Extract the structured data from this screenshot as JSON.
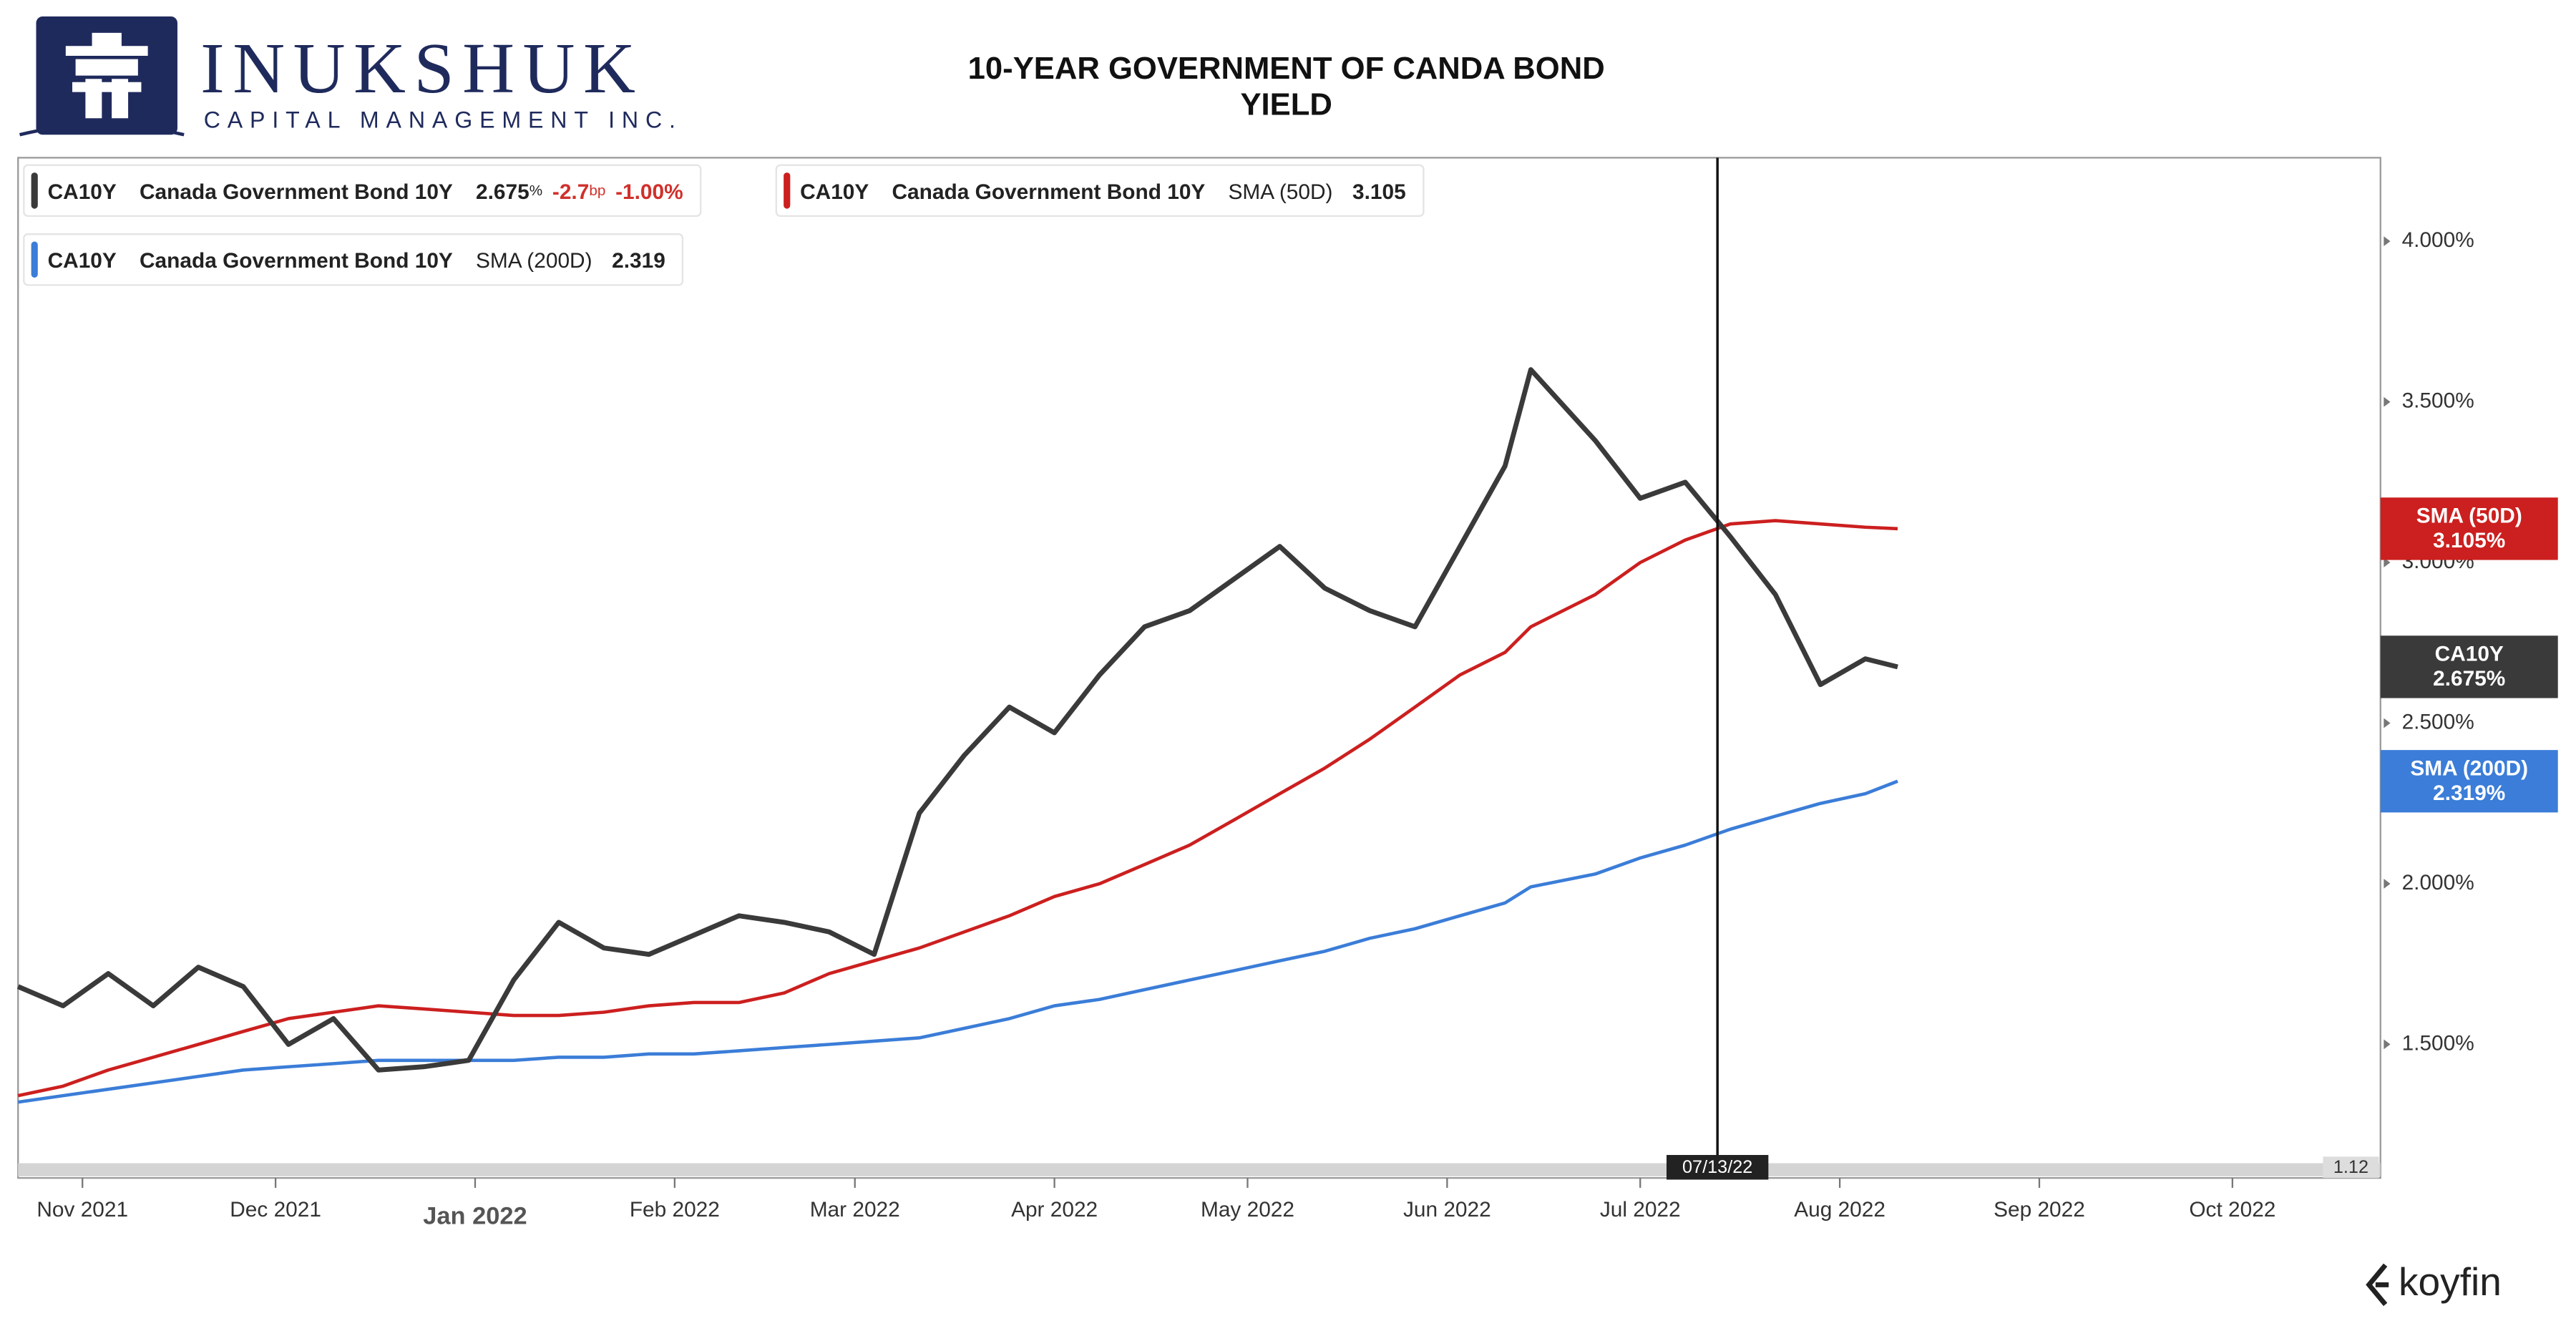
{
  "header": {
    "logo_name": "INUKSHUK",
    "logo_sub": "CAPITAL MANAGEMENT INC.",
    "title": [
      "10-YEAR GOVERNMENT OF CANDA BOND",
      "YIELD"
    ],
    "brand": "koyfin"
  },
  "chart_data": {
    "type": "line",
    "x": [
      "10/22/21",
      "10/29/21",
      "11/05/21",
      "11/12/21",
      "11/19/21",
      "11/26/21",
      "12/03/21",
      "12/10/21",
      "12/17/21",
      "12/24/21",
      "12/31/21",
      "01/07/22",
      "01/14/22",
      "01/21/22",
      "01/28/22",
      "02/04/22",
      "02/11/22",
      "02/18/22",
      "02/25/22",
      "03/04/22",
      "03/11/22",
      "03/18/22",
      "03/25/22",
      "04/01/22",
      "04/08/22",
      "04/15/22",
      "04/22/22",
      "04/29/22",
      "05/06/22",
      "05/13/22",
      "05/20/22",
      "05/27/22",
      "06/03/22",
      "06/10/22",
      "06/14/22",
      "06/24/22",
      "07/01/22",
      "07/08/22",
      "07/15/22",
      "07/22/22",
      "07/29/22",
      "08/05/22",
      "08/10/22"
    ],
    "series": [
      {
        "name": "CA10Y",
        "description": "Canada Government Bond 10Y",
        "legend_value": "2.675",
        "legend_unit": "%",
        "change": "-2.7",
        "change_unit": "bp",
        "change_pct": "-1.00%",
        "end_label": "CA10Y",
        "end_value_label": "2.675%",
        "color": "#3a3a3a",
        "values": [
          1.68,
          1.62,
          1.72,
          1.62,
          1.74,
          1.68,
          1.5,
          1.58,
          1.42,
          1.43,
          1.45,
          1.7,
          1.88,
          1.8,
          1.78,
          1.84,
          1.9,
          1.88,
          1.85,
          1.78,
          2.22,
          2.4,
          2.55,
          2.47,
          2.65,
          2.8,
          2.85,
          2.95,
          3.05,
          2.92,
          2.85,
          2.8,
          3.05,
          3.3,
          3.6,
          3.38,
          3.2,
          3.25,
          3.08,
          2.9,
          2.62,
          2.7,
          2.675
        ]
      },
      {
        "name": "CA10Y",
        "description": "Canada Government Bond 10Y",
        "study": "SMA (50D)",
        "legend_value": "3.105",
        "end_label": "SMA (50D)",
        "end_value_label": "3.105%",
        "color": "#cc1f1f",
        "values": [
          1.34,
          1.37,
          1.42,
          1.46,
          1.5,
          1.54,
          1.58,
          1.6,
          1.62,
          1.61,
          1.6,
          1.59,
          1.59,
          1.6,
          1.62,
          1.63,
          1.63,
          1.66,
          1.72,
          1.76,
          1.8,
          1.85,
          1.9,
          1.96,
          2.0,
          2.06,
          2.12,
          2.2,
          2.28,
          2.36,
          2.45,
          2.55,
          2.65,
          2.72,
          2.8,
          2.9,
          3.0,
          3.07,
          3.12,
          3.13,
          3.12,
          3.11,
          3.105
        ]
      },
      {
        "name": "CA10Y",
        "description": "Canada Government Bond 10Y",
        "study": "SMA (200D)",
        "legend_value": "2.319",
        "end_label": "SMA (200D)",
        "end_value_label": "2.319%",
        "color": "#3b7dd8",
        "values": [
          1.32,
          1.34,
          1.36,
          1.38,
          1.4,
          1.42,
          1.43,
          1.44,
          1.45,
          1.45,
          1.45,
          1.45,
          1.46,
          1.46,
          1.47,
          1.47,
          1.48,
          1.49,
          1.5,
          1.51,
          1.52,
          1.55,
          1.58,
          1.62,
          1.64,
          1.67,
          1.7,
          1.73,
          1.76,
          1.79,
          1.83,
          1.86,
          1.9,
          1.94,
          1.99,
          2.03,
          2.08,
          2.12,
          2.17,
          2.21,
          2.25,
          2.28,
          2.319
        ]
      }
    ],
    "xlim": [
      "10/22/21",
      "10/24/22"
    ],
    "xticks": [
      {
        "value": "11/01/21",
        "label": "Nov 2021"
      },
      {
        "value": "12/01/21",
        "label": "Dec 2021"
      },
      {
        "value": "01/01/22",
        "label": "Jan 2022"
      },
      {
        "value": "02/01/22",
        "label": "Feb 2022"
      },
      {
        "value": "03/01/22",
        "label": "Mar 2022"
      },
      {
        "value": "04/01/22",
        "label": "Apr 2022"
      },
      {
        "value": "05/01/22",
        "label": "May 2022"
      },
      {
        "value": "06/01/22",
        "label": "Jun 2022"
      },
      {
        "value": "07/01/22",
        "label": "Jul 2022"
      },
      {
        "value": "08/01/22",
        "label": "Aug 2022"
      },
      {
        "value": "09/01/22",
        "label": "Sep 2022"
      },
      {
        "value": "10/01/22",
        "label": "Oct 2022"
      }
    ],
    "ylim": [
      1.13,
      4.26
    ],
    "yticks": [
      {
        "value": 1.5,
        "label": "1.500%"
      },
      {
        "value": 2,
        "label": "2.000%"
      },
      {
        "value": 2.5,
        "label": "2.500%"
      },
      {
        "value": 3,
        "label": "3.000%"
      },
      {
        "value": 3.5,
        "label": "3.500%"
      },
      {
        "value": 4,
        "label": "4.000%"
      }
    ],
    "crosshair": "07/13/22",
    "scroll_label": "1.12"
  }
}
